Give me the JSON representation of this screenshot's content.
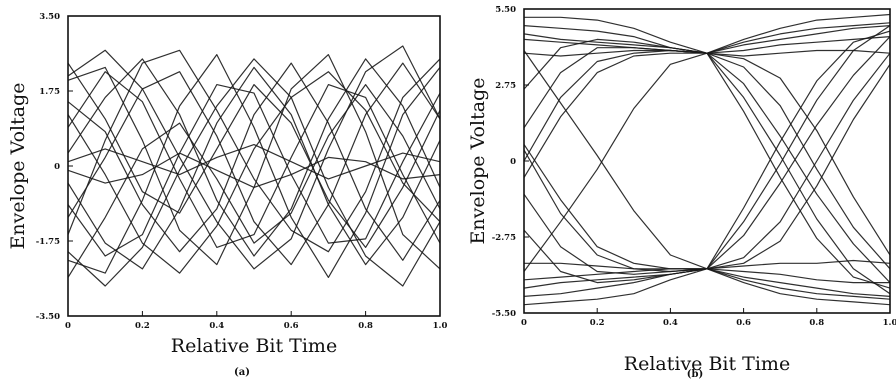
{
  "chart_data": [
    {
      "type": "line",
      "caption": "(a)",
      "xlabel": "Relative Bit Time",
      "ylabel": "Envelope Voltage",
      "xlim": [
        0,
        1.0
      ],
      "ylim": [
        -3.5,
        3.5
      ],
      "x_ticks": [
        "0",
        "0.2",
        "0.4",
        "0.6",
        "0.8",
        "1.0"
      ],
      "y_ticks": [
        "3.50",
        "1.75",
        "0",
        "-1.75",
        "-3.50"
      ],
      "grid": false,
      "description_kind": "eye-diagram-closed",
      "x": [
        0,
        0.1,
        0.2,
        0.3,
        0.4,
        0.5,
        0.6,
        0.7,
        0.8,
        0.9,
        1.0
      ],
      "series": [
        {
          "values": [
            2.0,
            2.3,
            0.6,
            -1.5,
            -2.3,
            -0.5,
            1.8,
            2.6,
            0.8,
            -1.6,
            -2.4
          ]
        },
        {
          "values": [
            -2.2,
            -2.5,
            -0.8,
            1.4,
            2.6,
            0.9,
            -1.2,
            -2.6,
            -1.1,
            1.2,
            2.3
          ]
        },
        {
          "values": [
            1.5,
            0.8,
            -0.9,
            -2.0,
            -1.0,
            1.2,
            2.4,
            1.0,
            -1.0,
            -2.2,
            -0.8
          ]
        },
        {
          "values": [
            -1.2,
            0.2,
            1.8,
            2.2,
            0.7,
            -1.3,
            -2.3,
            -0.9,
            1.2,
            2.4,
            1.1
          ]
        },
        {
          "values": [
            0.3,
            1.6,
            2.5,
            1.2,
            -0.8,
            -2.1,
            -1.0,
            1.1,
            2.5,
            1.4,
            -0.5
          ]
        },
        {
          "values": [
            -0.4,
            -1.8,
            -2.4,
            -1.0,
            1.0,
            2.3,
            1.2,
            -0.9,
            -2.3,
            -1.2,
            0.6
          ]
        },
        {
          "values": [
            2.4,
            1.1,
            -0.6,
            -1.1,
            0.4,
            1.9,
            1.0,
            -0.8,
            -1.9,
            -0.5,
            1.3
          ]
        },
        {
          "values": [
            -2.6,
            -1.2,
            0.4,
            1.0,
            -0.3,
            -1.8,
            -1.1,
            0.7,
            1.9,
            0.7,
            -1.0
          ]
        },
        {
          "values": [
            0.9,
            2.2,
            1.5,
            -0.3,
            -1.9,
            -1.6,
            0.2,
            1.9,
            1.6,
            -0.2,
            -1.8
          ]
        },
        {
          "values": [
            -0.9,
            -2.1,
            -1.6,
            0.3,
            1.9,
            1.7,
            -0.2,
            -1.8,
            -1.7,
            0.1,
            1.7
          ]
        },
        {
          "values": [
            1.2,
            -0.2,
            -1.8,
            -2.5,
            -1.4,
            0.4,
            1.6,
            2.2,
            1.3,
            -0.4,
            -1.3
          ]
        },
        {
          "values": [
            -1.6,
            0.6,
            2.4,
            2.7,
            1.3,
            -0.3,
            -1.5,
            -2.0,
            -0.6,
            1.6,
            2.5
          ]
        },
        {
          "values": [
            0.1,
            0.4,
            0.1,
            -0.2,
            0.2,
            0.5,
            0.1,
            -0.3,
            0.0,
            0.3,
            0.1
          ]
        },
        {
          "values": [
            -0.1,
            -0.4,
            -0.2,
            0.3,
            -0.1,
            -0.5,
            -0.2,
            0.2,
            0.1,
            -0.3,
            -0.2
          ]
        },
        {
          "values": [
            2.1,
            2.7,
            1.8,
            0.2,
            -1.3,
            -2.4,
            -1.7,
            0.4,
            2.2,
            2.8,
            1.1
          ]
        },
        {
          "values": [
            -2.0,
            -2.8,
            -1.9,
            -0.1,
            1.4,
            2.5,
            1.6,
            -0.5,
            -2.1,
            -2.8,
            -1.3
          ]
        }
      ]
    },
    {
      "type": "line",
      "caption": "(b)",
      "xlabel": "Relative Bit Time",
      "ylabel": "Envelope Voltage",
      "xlim": [
        0,
        1.0
      ],
      "ylim": [
        -5.5,
        5.5
      ],
      "x_ticks": [
        "0",
        "0.2",
        "0.4",
        "0.6",
        "0.8",
        "1.0"
      ],
      "y_ticks": [
        "5.50",
        "2.75",
        "0",
        "-2.75",
        "-5.50"
      ],
      "grid": false,
      "description_kind": "eye-diagram-open",
      "x": [
        0,
        0.1,
        0.2,
        0.3,
        0.4,
        0.5,
        0.6,
        0.7,
        0.8,
        0.9,
        1.0
      ],
      "series": [
        {
          "values": [
            4.9,
            4.8,
            4.7,
            4.5,
            4.1,
            3.9,
            4.3,
            4.6,
            4.8,
            4.9,
            5.0
          ]
        },
        {
          "values": [
            4.4,
            4.3,
            4.2,
            4.1,
            4.0,
            3.9,
            4.0,
            4.2,
            4.3,
            4.4,
            4.5
          ]
        },
        {
          "values": [
            5.2,
            5.2,
            5.1,
            4.8,
            4.3,
            3.9,
            4.4,
            4.8,
            5.1,
            5.2,
            5.3
          ]
        },
        {
          "values": [
            3.9,
            3.8,
            3.9,
            4.0,
            4.0,
            3.9,
            3.8,
            3.9,
            4.0,
            4.0,
            3.9
          ]
        },
        {
          "values": [
            -4.9,
            -4.8,
            -4.6,
            -4.4,
            -4.1,
            -3.9,
            -4.3,
            -4.6,
            -4.8,
            -4.9,
            -5.0
          ]
        },
        {
          "values": [
            -4.3,
            -4.2,
            -4.1,
            -4.0,
            -3.9,
            -3.9,
            -4.0,
            -4.1,
            -4.3,
            -4.4,
            -4.4
          ]
        },
        {
          "values": [
            -5.2,
            -5.1,
            -5.0,
            -4.8,
            -4.3,
            -3.9,
            -4.4,
            -4.8,
            -5.0,
            -5.1,
            -5.2
          ]
        },
        {
          "values": [
            -3.7,
            -3.7,
            -3.8,
            -3.9,
            -3.9,
            -3.9,
            -3.8,
            -3.7,
            -3.7,
            -3.6,
            -3.7
          ]
        },
        {
          "values": [
            0.4,
            -1.9,
            -3.4,
            -3.9,
            -4.0,
            -3.9,
            -3.5,
            -2.2,
            0.0,
            2.2,
            3.9
          ]
        },
        {
          "values": [
            0.0,
            2.3,
            3.6,
            3.9,
            4.0,
            3.9,
            3.4,
            2.0,
            -0.3,
            -2.4,
            -3.9
          ]
        },
        {
          "values": [
            1.2,
            3.2,
            4.1,
            4.1,
            4.0,
            3.9,
            2.8,
            0.9,
            -1.2,
            -3.0,
            -4.4
          ]
        },
        {
          "values": [
            -1.2,
            -3.1,
            -4.0,
            -4.1,
            -4.0,
            -3.9,
            -2.7,
            -0.8,
            1.3,
            3.1,
            4.5
          ]
        },
        {
          "values": [
            -0.6,
            1.6,
            3.2,
            3.8,
            3.9,
            3.9,
            3.7,
            3.0,
            1.1,
            -1.3,
            -3.4
          ]
        },
        {
          "values": [
            0.6,
            -1.4,
            -3.1,
            -3.7,
            -3.9,
            -3.9,
            -3.7,
            -2.9,
            -0.9,
            1.5,
            3.5
          ]
        },
        {
          "values": [
            2.6,
            4.1,
            4.4,
            4.3,
            4.1,
            3.9,
            2.3,
            0.2,
            -2.1,
            -3.9,
            -4.8
          ]
        },
        {
          "values": [
            -2.5,
            -4.0,
            -4.4,
            -4.3,
            -4.1,
            -3.9,
            -2.2,
            -0.1,
            2.2,
            4.0,
            4.9
          ]
        },
        {
          "values": [
            4.6,
            4.4,
            4.3,
            4.2,
            4.1,
            3.9,
            1.8,
            -0.6,
            -2.8,
            -4.2,
            -4.6
          ]
        },
        {
          "values": [
            -4.6,
            -4.4,
            -4.3,
            -4.2,
            -4.1,
            -3.9,
            -1.7,
            0.7,
            2.9,
            4.3,
            4.7
          ]
        },
        {
          "values": [
            -4.0,
            -2.2,
            -0.3,
            1.9,
            3.5,
            3.9,
            4.2,
            4.4,
            4.6,
            4.8,
            4.9
          ]
        },
        {
          "values": [
            4.0,
            2.1,
            0.2,
            -1.8,
            -3.4,
            -3.9,
            -4.2,
            -4.4,
            -4.6,
            -4.8,
            -4.9
          ]
        }
      ]
    }
  ]
}
